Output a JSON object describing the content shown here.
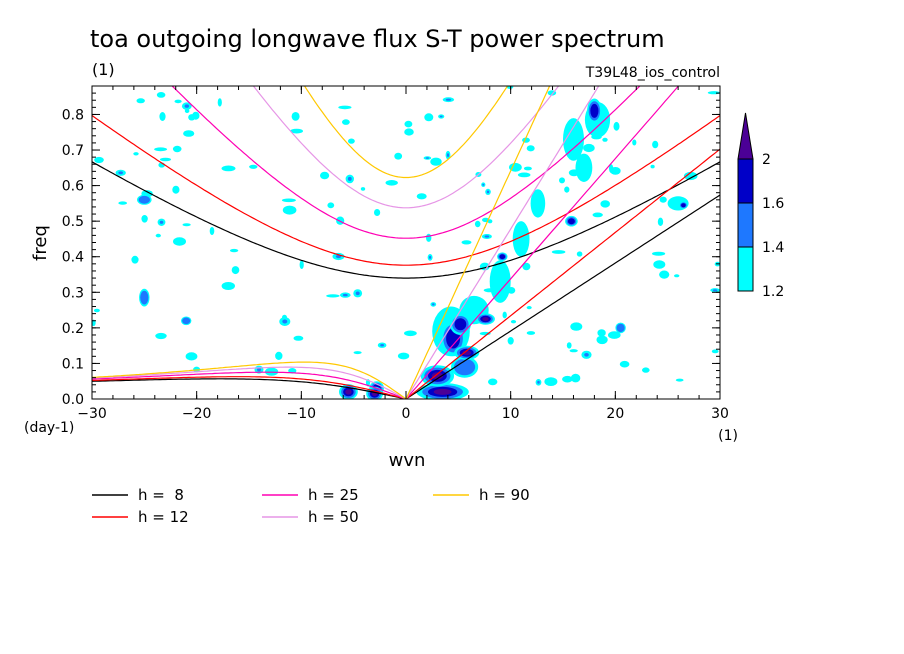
{
  "chart_data": {
    "type": "heatmap",
    "title": "toa outgoing longwave flux S-T power spectrum",
    "title_units": "(1)",
    "experiment": "T39L48_ios_control",
    "xlabel": "wvn",
    "ylabel": "freq",
    "x_units": "(1)",
    "y_units": "(day-1)",
    "xlim": [
      -30,
      30
    ],
    "ylim": [
      0,
      0.88
    ],
    "x_ticks": [
      -30,
      -20,
      -10,
      0,
      10,
      20,
      30
    ],
    "y_ticks": [
      0.0,
      0.1,
      0.2,
      0.3,
      0.4,
      0.5,
      0.6,
      0.7,
      0.8
    ],
    "x_tick_labels": [
      "−30",
      "−20",
      "−10",
      "0",
      "10",
      "20",
      "30"
    ],
    "y_tick_labels": [
      "0.0",
      "0.1",
      "0.2",
      "0.3",
      "0.4",
      "0.5",
      "0.6",
      "0.7",
      "0.8"
    ],
    "colorbar": {
      "levels": [
        1.2,
        1.4,
        1.6,
        2
      ],
      "labels": [
        "1.2",
        "1.4",
        "1.6",
        "2"
      ],
      "colors": [
        "#00ffff",
        "#1e78ff",
        "#0000c8",
        "#4b0096"
      ]
    },
    "dispersion_curves": [
      {
        "name": "h =  8",
        "h": 8,
        "color": "#000000"
      },
      {
        "name": "h = 12",
        "h": 12,
        "color": "#ff0000"
      },
      {
        "name": "h = 25",
        "h": 25,
        "color": "#ff00b4"
      },
      {
        "name": "h = 50",
        "h": 50,
        "color": "#e696e6"
      },
      {
        "name": "h = 90",
        "h": 90,
        "color": "#ffc800"
      }
    ],
    "contour_blobs": [
      {
        "x": 3.5,
        "y": 0.02,
        "rx": 2.5,
        "ry": 0.025,
        "level": 3
      },
      {
        "x": 3.0,
        "y": 0.065,
        "rx": 1.6,
        "ry": 0.03,
        "level": 3
      },
      {
        "x": 5.8,
        "y": 0.13,
        "rx": 1.2,
        "ry": 0.02,
        "level": 3
      },
      {
        "x": 4.5,
        "y": 0.17,
        "rx": 1.2,
        "ry": 0.05,
        "level": 2
      },
      {
        "x": 5.2,
        "y": 0.21,
        "rx": 1.0,
        "ry": 0.03,
        "level": 2
      },
      {
        "x": 7.6,
        "y": 0.225,
        "rx": 0.9,
        "ry": 0.016,
        "level": 3
      },
      {
        "x": 5.6,
        "y": 0.09,
        "rx": 1.3,
        "ry": 0.03,
        "level": 1
      },
      {
        "x": 4.3,
        "y": 0.19,
        "rx": 1.8,
        "ry": 0.07,
        "level": 0
      },
      {
        "x": 6.5,
        "y": 0.25,
        "rx": 1.4,
        "ry": 0.04,
        "level": 0
      },
      {
        "x": 9.0,
        "y": 0.33,
        "rx": 1.0,
        "ry": 0.06,
        "level": 0
      },
      {
        "x": 11.0,
        "y": 0.45,
        "rx": 0.8,
        "ry": 0.05,
        "level": 0
      },
      {
        "x": 12.6,
        "y": 0.55,
        "rx": 0.7,
        "ry": 0.04,
        "level": 0
      },
      {
        "x": 9.2,
        "y": 0.4,
        "rx": 0.5,
        "ry": 0.012,
        "level": 2
      },
      {
        "x": -5.5,
        "y": 0.02,
        "rx": 0.9,
        "ry": 0.022,
        "level": 3
      },
      {
        "x": -2.8,
        "y": 0.03,
        "rx": 0.7,
        "ry": 0.02,
        "level": 2
      },
      {
        "x": -3.0,
        "y": 0.015,
        "rx": 0.8,
        "ry": 0.02,
        "level": 3
      },
      {
        "x": -25.0,
        "y": 0.285,
        "rx": 0.5,
        "ry": 0.025,
        "level": 1
      },
      {
        "x": -25.0,
        "y": 0.56,
        "rx": 0.7,
        "ry": 0.014,
        "level": 1
      },
      {
        "x": -21.0,
        "y": 0.22,
        "rx": 0.5,
        "ry": 0.012,
        "level": 1
      },
      {
        "x": 18.0,
        "y": 0.81,
        "rx": 0.7,
        "ry": 0.035,
        "level": 2
      },
      {
        "x": 18.3,
        "y": 0.785,
        "rx": 1.2,
        "ry": 0.05,
        "level": 0
      },
      {
        "x": 26.0,
        "y": 0.55,
        "rx": 1.0,
        "ry": 0.02,
        "level": 0
      },
      {
        "x": 26.5,
        "y": 0.545,
        "rx": 0.4,
        "ry": 0.01,
        "level": 2
      },
      {
        "x": 20.5,
        "y": 0.2,
        "rx": 0.5,
        "ry": 0.015,
        "level": 1
      },
      {
        "x": 15.8,
        "y": 0.5,
        "rx": 0.6,
        "ry": 0.015,
        "level": 2
      },
      {
        "x": 16.0,
        "y": 0.73,
        "rx": 1.0,
        "ry": 0.06,
        "level": 0
      },
      {
        "x": 17.0,
        "y": 0.65,
        "rx": 0.8,
        "ry": 0.04,
        "level": 0
      }
    ],
    "speckle_seed": 20240
  }
}
